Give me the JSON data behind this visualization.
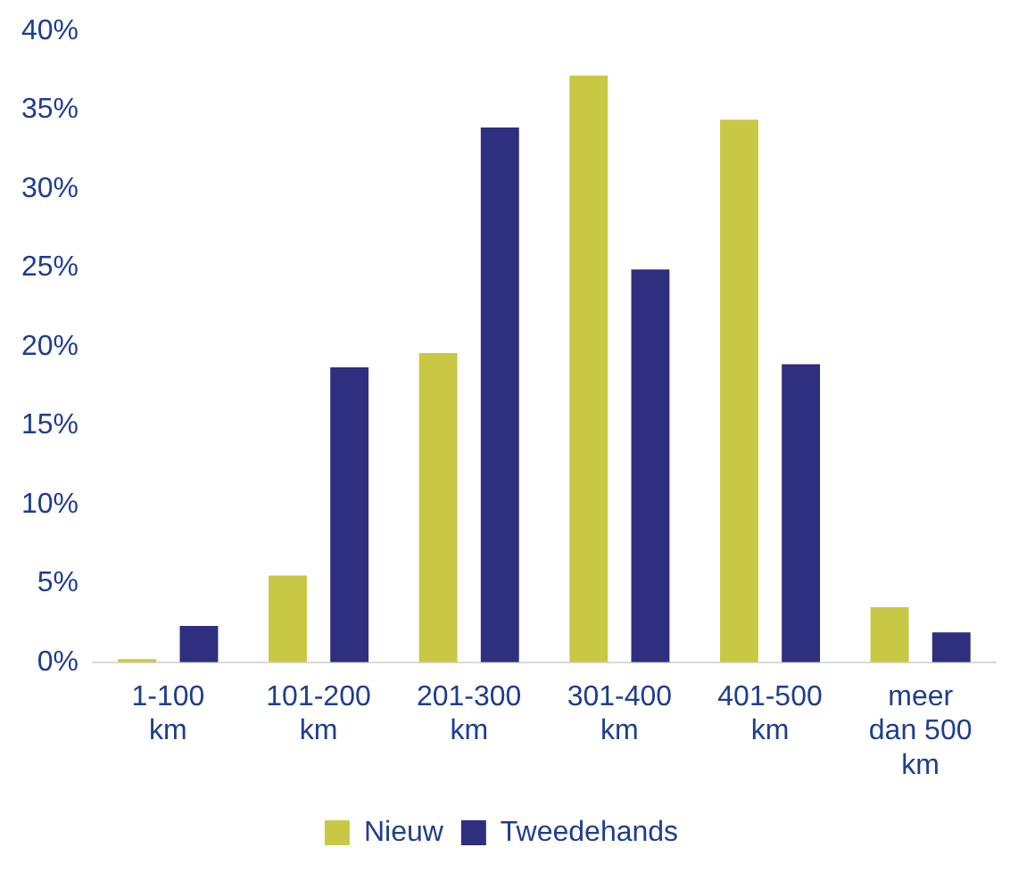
{
  "chart_data": {
    "type": "bar",
    "categories": [
      "1-100 km",
      "101-200 km",
      "201-300 km",
      "301-400 km",
      "401-500 km",
      "meer dan 500 km"
    ],
    "series": [
      {
        "name": "Nieuw",
        "color": "#c9c844",
        "values": [
          0.2,
          5.5,
          19.6,
          37.2,
          34.4,
          3.5
        ]
      },
      {
        "name": "Tweedehands",
        "color": "#2e2f7e",
        "values": [
          2.3,
          18.7,
          33.9,
          24.9,
          18.9,
          1.9
        ]
      }
    ],
    "ylim": [
      0,
      40
    ],
    "yticks": [
      {
        "value": 0,
        "label": "0%"
      },
      {
        "value": 5,
        "label": "5%"
      },
      {
        "value": 10,
        "label": "10%"
      },
      {
        "value": 15,
        "label": "15%"
      },
      {
        "value": 20,
        "label": "20%"
      },
      {
        "value": 25,
        "label": "25%"
      },
      {
        "value": 30,
        "label": "30%"
      },
      {
        "value": 35,
        "label": "35%"
      },
      {
        "value": 40,
        "label": "40%"
      }
    ],
    "grid": false,
    "legend": "bottom"
  }
}
